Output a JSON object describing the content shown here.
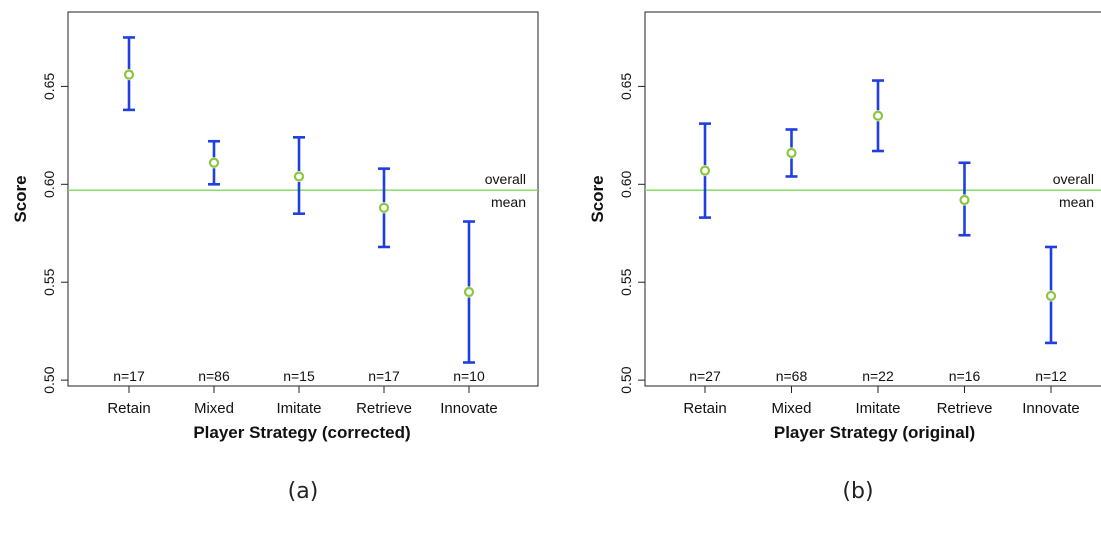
{
  "chart_data": [
    {
      "type": "errorbar",
      "panel_label": "(a)",
      "title": "",
      "xlabel": "Player Strategy (corrected)",
      "ylabel": "Score",
      "ylim": [
        0.497,
        0.688
      ],
      "yticks": [
        0.5,
        0.55,
        0.6,
        0.65
      ],
      "ytick_labels": [
        "0.50",
        "0.55",
        "0.60",
        "0.65"
      ],
      "categories": [
        "Retain",
        "Mixed",
        "Imitate",
        "Retrieve",
        "Innovate"
      ],
      "n_labels": [
        "n=17",
        "n=86",
        "n=15",
        "n=17",
        "n=10"
      ],
      "means": [
        0.656,
        0.611,
        0.604,
        0.588,
        0.545
      ],
      "lower": [
        0.638,
        0.6,
        0.585,
        0.568,
        0.509
      ],
      "upper": [
        0.675,
        0.622,
        0.624,
        0.608,
        0.581
      ],
      "reference_line": {
        "value": 0.597,
        "label_line1": "overall",
        "label_line2": "mean",
        "color": "#7ed957"
      },
      "colors": {
        "error_bar": "#1f3fe0",
        "mean_marker": "#8cc63f",
        "reference": "#7ed957"
      }
    },
    {
      "type": "errorbar",
      "panel_label": "(b)",
      "title": "",
      "xlabel": "Player Strategy (original)",
      "ylabel": "Score",
      "ylim": [
        0.497,
        0.688
      ],
      "yticks": [
        0.5,
        0.55,
        0.6,
        0.65
      ],
      "ytick_labels": [
        "0.50",
        "0.55",
        "0.60",
        "0.65"
      ],
      "categories": [
        "Retain",
        "Mixed",
        "Imitate",
        "Retrieve",
        "Innovate"
      ],
      "n_labels": [
        "n=27",
        "n=68",
        "n=22",
        "n=16",
        "n=12"
      ],
      "means": [
        0.607,
        0.616,
        0.635,
        0.592,
        0.543
      ],
      "lower": [
        0.583,
        0.604,
        0.617,
        0.574,
        0.519
      ],
      "upper": [
        0.631,
        0.628,
        0.653,
        0.611,
        0.568
      ],
      "reference_line": {
        "value": 0.597,
        "label_line1": "overall",
        "label_line2": "mean",
        "color": "#7ed957"
      },
      "colors": {
        "error_bar": "#1f3fe0",
        "mean_marker": "#8cc63f",
        "reference": "#7ed957"
      }
    }
  ]
}
